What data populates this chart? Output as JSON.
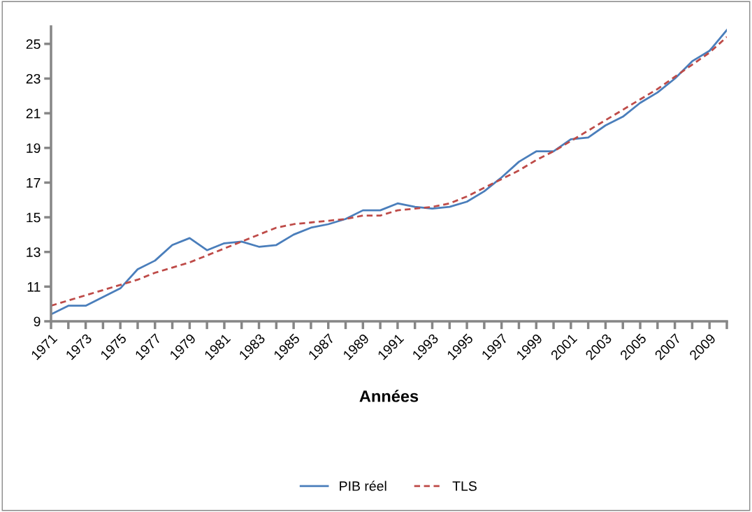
{
  "chart_data": {
    "type": "line",
    "xlabel": "Années",
    "categories": [
      "1971",
      null,
      "1973",
      null,
      "1975",
      null,
      "1977",
      null,
      "1979",
      null,
      "1981",
      null,
      "1983",
      null,
      "1985",
      null,
      "1987",
      null,
      "1989",
      null,
      "1991",
      null,
      "1993",
      null,
      "1995",
      null,
      "1997",
      null,
      "1999",
      null,
      "2001",
      null,
      "2003",
      null,
      "2005",
      null,
      "2007",
      null,
      "2009",
      null
    ],
    "series": [
      {
        "name": "PIB réel",
        "color": "#4a7ebb",
        "line_style": "solid",
        "values": [
          9.4,
          9.9,
          9.9,
          10.4,
          10.9,
          12.0,
          12.5,
          13.4,
          13.8,
          13.1,
          13.5,
          13.6,
          13.3,
          13.4,
          14.0,
          14.4,
          14.6,
          14.9,
          15.4,
          15.4,
          15.8,
          15.6,
          15.5,
          15.6,
          15.9,
          16.5,
          17.3,
          18.2,
          18.8,
          18.8,
          19.5,
          19.6,
          20.3,
          20.8,
          21.6,
          22.2,
          23.0,
          24.0,
          24.6,
          25.8
        ]
      },
      {
        "name": "TLS",
        "color": "#be4b48",
        "line_style": "dashed",
        "values": [
          9.9,
          10.2,
          10.5,
          10.8,
          11.1,
          11.4,
          11.8,
          12.1,
          12.4,
          12.8,
          13.2,
          13.6,
          14.0,
          14.4,
          14.6,
          14.7,
          14.8,
          14.9,
          15.1,
          15.1,
          15.4,
          15.5,
          15.6,
          15.8,
          16.2,
          16.7,
          17.2,
          17.7,
          18.3,
          18.8,
          19.4,
          20.0,
          20.6,
          21.2,
          21.8,
          22.4,
          23.1,
          23.8,
          24.5,
          25.4
        ]
      }
    ],
    "ylim": [
      9,
      26
    ],
    "yticks": [
      9,
      11,
      13,
      15,
      17,
      19,
      21,
      23,
      25
    ],
    "grid": false,
    "legend": "bottom",
    "marker": "none"
  }
}
